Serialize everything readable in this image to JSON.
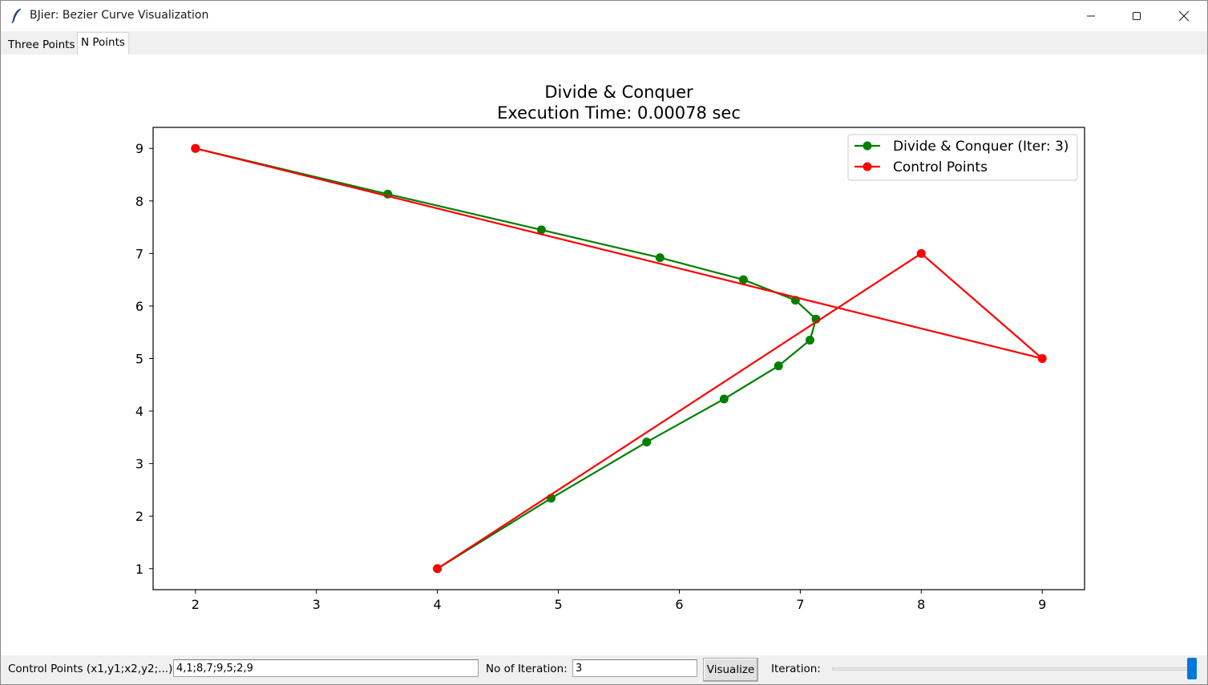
{
  "window": {
    "title": "BJier: Bezier Curve Visualization",
    "icon": "feather-icon",
    "controls": [
      "minimize-icon",
      "maximize-icon",
      "close-icon"
    ]
  },
  "tabs": [
    {
      "label": "Three Points",
      "active": false
    },
    {
      "label": "N Points",
      "active": true
    }
  ],
  "chart_data": {
    "type": "line",
    "title": "Divide & Conquer",
    "subtitle": "Execution Time: 0.00078 sec",
    "xlabel": "",
    "ylabel": "",
    "xlim": [
      1.65,
      9.35
    ],
    "ylim": [
      0.6,
      9.4
    ],
    "xticks": [
      2,
      3,
      4,
      5,
      6,
      7,
      8,
      9
    ],
    "yticks": [
      1,
      2,
      3,
      4,
      5,
      6,
      7,
      8,
      9
    ],
    "grid": false,
    "legend_position": "top-right",
    "series": [
      {
        "name": "Divide & Conquer (Iter: 3)",
        "color": "#008000",
        "marker": "circle",
        "points": [
          [
            4,
            1
          ],
          [
            4.94,
            2.34
          ],
          [
            5.73,
            3.41
          ],
          [
            6.37,
            4.23
          ],
          [
            6.82,
            4.86
          ],
          [
            7.08,
            5.35
          ],
          [
            7.13,
            5.75
          ],
          [
            6.96,
            6.11
          ],
          [
            6.53,
            6.5
          ],
          [
            5.84,
            6.92
          ],
          [
            4.86,
            7.45
          ],
          [
            3.59,
            8.13
          ],
          [
            2,
            9
          ]
        ]
      },
      {
        "name": "Control Points",
        "color": "#ff0000",
        "marker": "circle",
        "points": [
          [
            4,
            1
          ],
          [
            8,
            7
          ],
          [
            9,
            5
          ],
          [
            2,
            9
          ]
        ]
      }
    ]
  },
  "controls": {
    "control_points_label": "Control Points (x1,y1;x2,y2;...):",
    "control_points_value": "4,1;8,7;9,5;2,9",
    "iterations_label": "No of Iteration:",
    "iterations_value": "3",
    "visualize_label": "Visualize",
    "slider_label": "Iteration:",
    "slider_fraction": 1.0
  }
}
